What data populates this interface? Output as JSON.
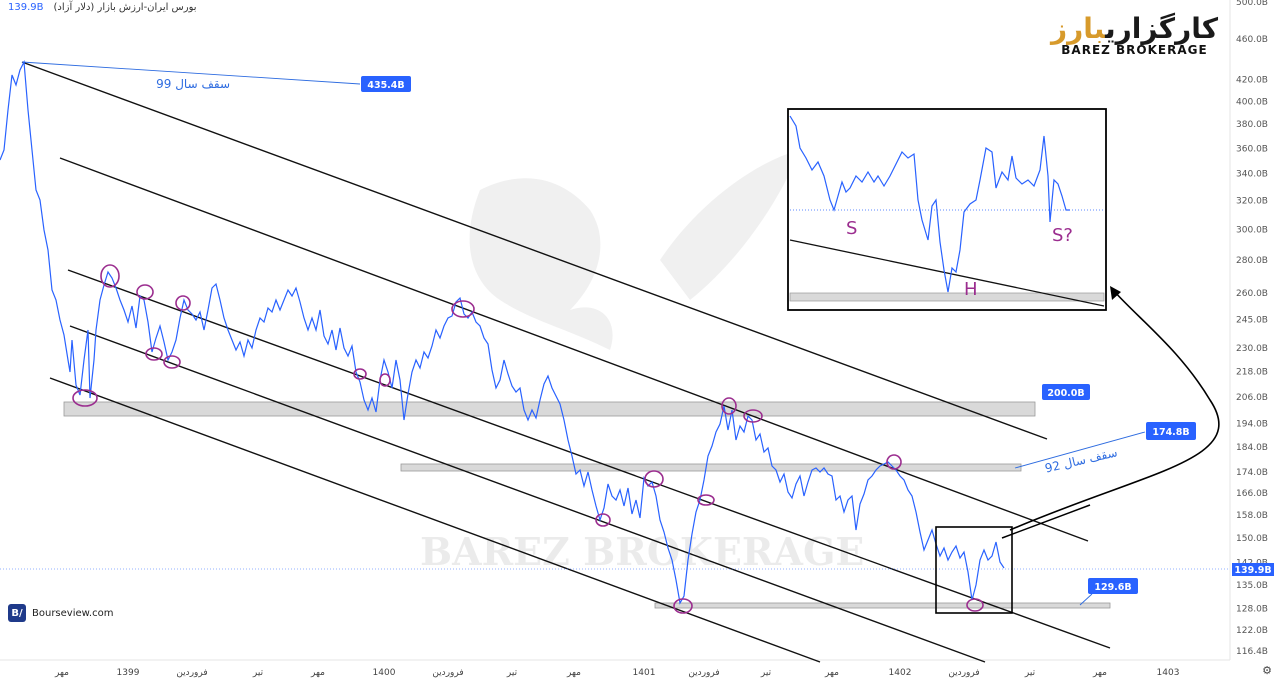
{
  "header": {
    "symbol_title": "بورس ایران-ارزش بازار (دلار آزاد)",
    "last_price": "139.9B"
  },
  "logo": {
    "fa_main": "کارگزاری",
    "fa_accent": "بارز",
    "en": "BAREZ BROKERAGE"
  },
  "watermark": {
    "en": "BAREZ BROKERAGE"
  },
  "source": {
    "icon_text": "B/",
    "label": "Bourseview.com"
  },
  "settings_icon": "gear-icon",
  "colors": {
    "price_line": "#2962ff",
    "marker": "#9b2d8f",
    "label_bg": "#2962ff",
    "zone_fill": "#d9d9d9"
  },
  "chart_data": {
    "type": "line",
    "y_scale": "log",
    "ylim": [
      116.4,
      500
    ],
    "x_tick_labels": [
      "مهر",
      "1399",
      "فروردین",
      "تیر",
      "مهر",
      "1400",
      "فروردین",
      "تیر",
      "مهر",
      "1401",
      "فروردین",
      "تیر",
      "مهر",
      "1402",
      "فروردین",
      "تیر",
      "مهر",
      "1403"
    ],
    "y_tick_labels": [
      "500.0B",
      "460.0B",
      "420.0B",
      "400.0B",
      "380.0B",
      "360.0B",
      "340.0B",
      "320.0B",
      "300.0B",
      "280.0B",
      "260.0B",
      "245.0B",
      "230.0B",
      "218.0B",
      "206.0B",
      "194.0B",
      "184.0B",
      "174.0B",
      "166.0B",
      "158.0B",
      "150.0B",
      "142.0B",
      "135.0B",
      "128.0B",
      "122.0B",
      "116.4B"
    ],
    "y_ticks": [
      500,
      460,
      420,
      400,
      380,
      360,
      340,
      320,
      300,
      280,
      260,
      245,
      230,
      218,
      206,
      194,
      184,
      174,
      166,
      158,
      150,
      142,
      135,
      128,
      122,
      116.4
    ],
    "last_value": 139.9,
    "last_value_label": "139.9B",
    "levels": [
      {
        "value": 435.4,
        "label": "435.4B",
        "note": "سقف سال 99"
      },
      {
        "value": 200,
        "label": "200.0B",
        "note": ""
      },
      {
        "value": 174.8,
        "label": "174.8B",
        "note": "سقف سال 92"
      },
      {
        "value": 129.6,
        "label": "129.6B",
        "note": ""
      }
    ],
    "inset_labels": [
      "S",
      "H",
      "S?"
    ]
  }
}
